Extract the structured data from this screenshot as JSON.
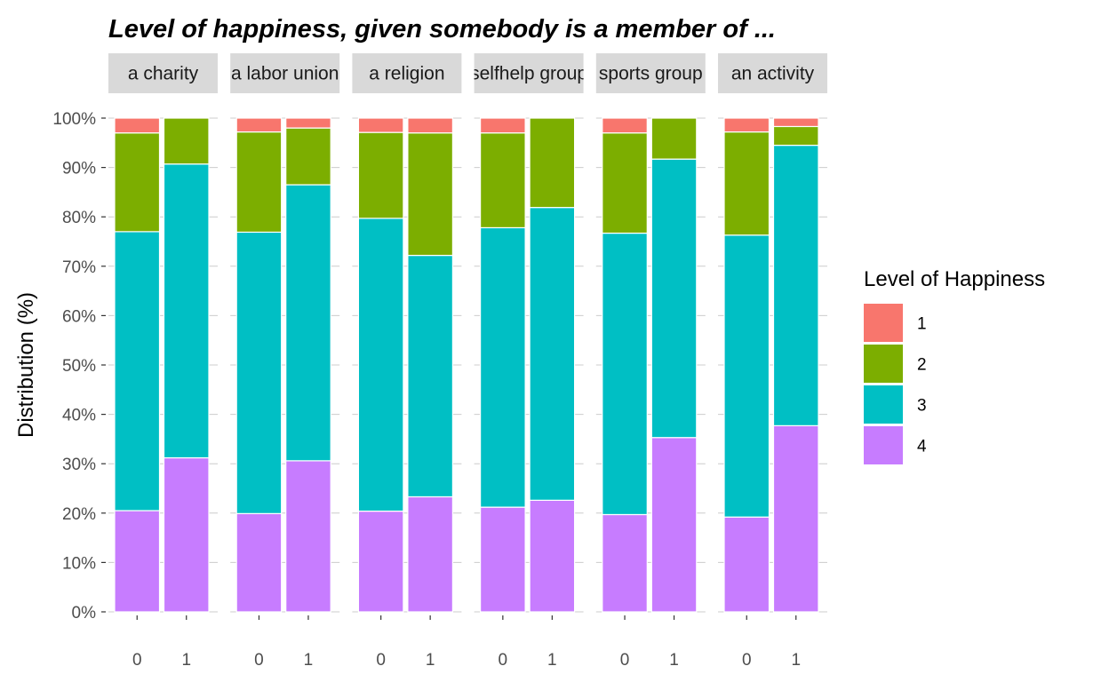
{
  "chart_data": {
    "type": "bar",
    "stacked": true,
    "title": "Level of happiness, given somebody is a member of ...",
    "ylabel": "Distribution (%)",
    "xlabel": "",
    "ylim": [
      0,
      100
    ],
    "y_ticks": [
      "0%",
      "10%",
      "20%",
      "30%",
      "40%",
      "50%",
      "60%",
      "70%",
      "80%",
      "90%",
      "100%"
    ],
    "categories": [
      "0",
      "1"
    ],
    "facets": [
      {
        "label": "a charity",
        "bars": [
          {
            "x": "0",
            "values": {
              "1": 3.0,
              "2": 20.0,
              "3": 56.5,
              "4": 20.5
            }
          },
          {
            "x": "1",
            "values": {
              "1": 0.0,
              "2": 9.3,
              "3": 59.5,
              "4": 31.2
            }
          }
        ]
      },
      {
        "label": "a labor union",
        "bars": [
          {
            "x": "0",
            "values": {
              "1": 2.8,
              "2": 20.3,
              "3": 57.0,
              "4": 19.9
            }
          },
          {
            "x": "1",
            "values": {
              "1": 2.0,
              "2": 11.5,
              "3": 55.9,
              "4": 30.6
            }
          }
        ]
      },
      {
        "label": "a religion",
        "bars": [
          {
            "x": "0",
            "values": {
              "1": 2.9,
              "2": 17.4,
              "3": 59.3,
              "4": 20.4
            }
          },
          {
            "x": "1",
            "values": {
              "1": 3.0,
              "2": 24.8,
              "3": 48.9,
              "4": 23.3
            }
          }
        ]
      },
      {
        "label": "selfhelp group",
        "bars": [
          {
            "x": "0",
            "values": {
              "1": 3.0,
              "2": 19.2,
              "3": 56.6,
              "4": 21.2
            }
          },
          {
            "x": "1",
            "values": {
              "1": 0.0,
              "2": 18.1,
              "3": 59.3,
              "4": 22.6
            }
          }
        ]
      },
      {
        "label": "sports group",
        "bars": [
          {
            "x": "0",
            "values": {
              "1": 3.0,
              "2": 20.3,
              "3": 57.0,
              "4": 19.7
            }
          },
          {
            "x": "1",
            "values": {
              "1": 0.0,
              "2": 8.3,
              "3": 56.4,
              "4": 35.3
            }
          }
        ]
      },
      {
        "label": "an activity",
        "bars": [
          {
            "x": "0",
            "values": {
              "1": 2.8,
              "2": 20.9,
              "3": 57.1,
              "4": 19.2
            }
          },
          {
            "x": "1",
            "values": {
              "1": 1.7,
              "2": 3.8,
              "3": 56.8,
              "4": 37.7
            }
          }
        ]
      }
    ],
    "legend": {
      "title": "Level of Happiness",
      "placement": "right",
      "items": [
        {
          "key": "1",
          "label": "1",
          "color": "#F8766D"
        },
        {
          "key": "2",
          "label": "2",
          "color": "#7CAE00"
        },
        {
          "key": "3",
          "label": "3",
          "color": "#00BFC4"
        },
        {
          "key": "4",
          "label": "4",
          "color": "#C77CFF"
        }
      ]
    },
    "stack_order_bottom_to_top": [
      "4",
      "3",
      "2",
      "1"
    ],
    "grid": true,
    "strip_color": "#D9D9D9",
    "grid_color": "#CCCCCC"
  }
}
